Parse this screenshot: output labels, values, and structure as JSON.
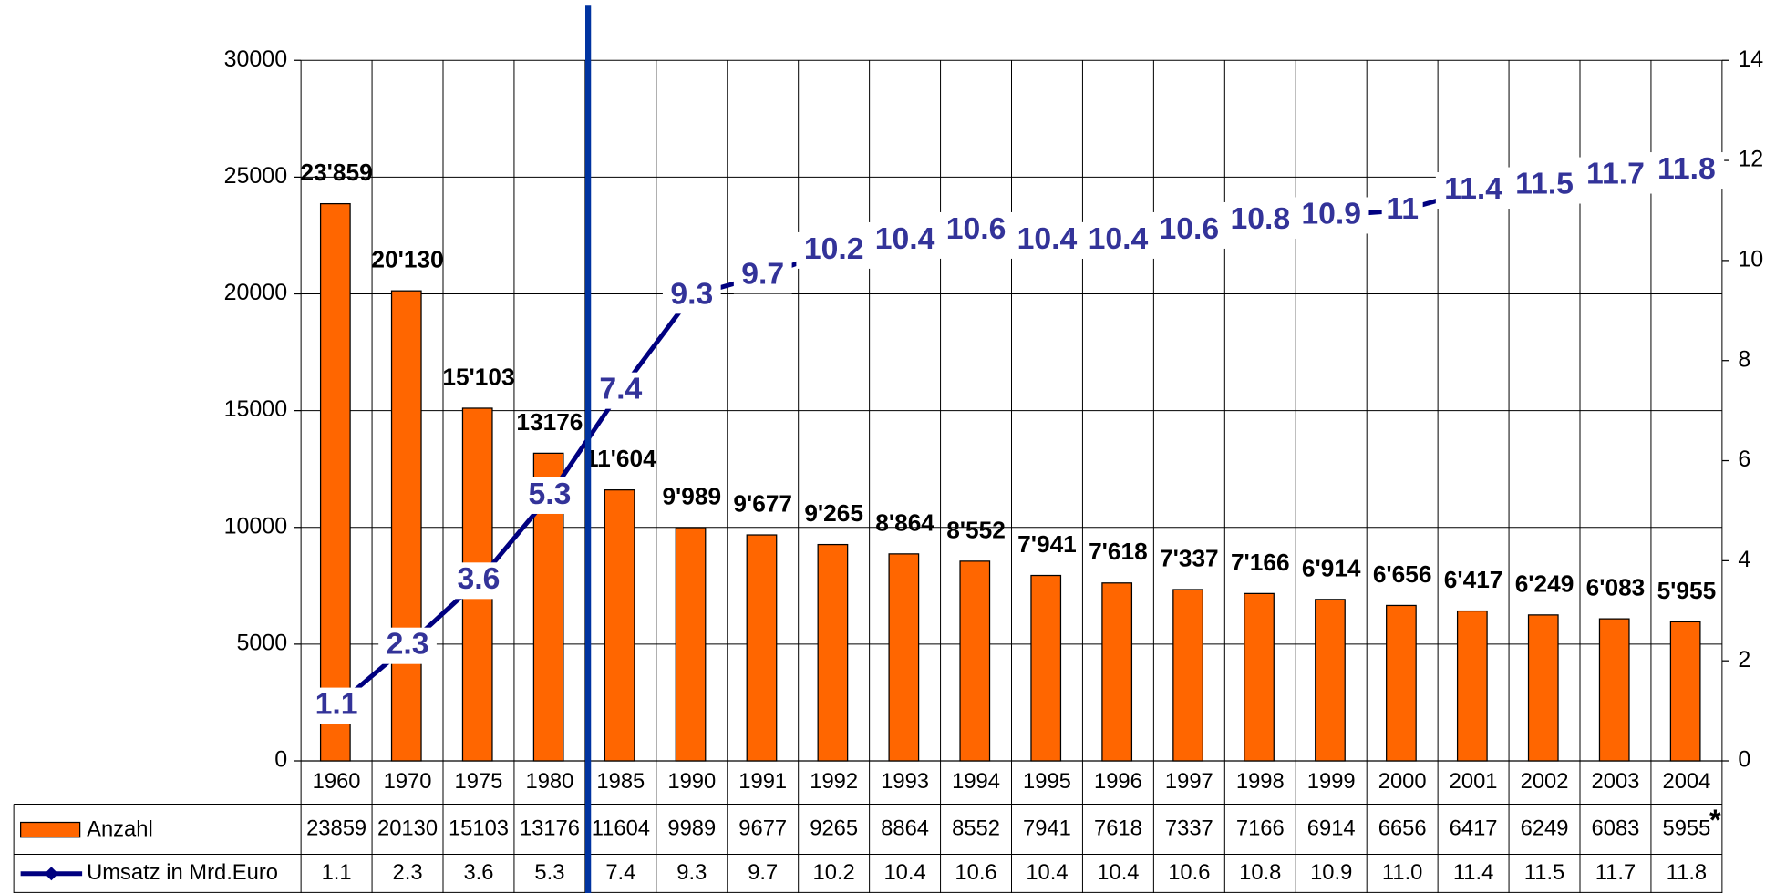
{
  "chart_data": {
    "type": "bar_line",
    "categories": [
      "1960",
      "1970",
      "1975",
      "1980",
      "1985",
      "1990",
      "1991",
      "1992",
      "1993",
      "1994",
      "1995",
      "1996",
      "1997",
      "1998",
      "1999",
      "2000",
      "2001",
      "2002",
      "2003",
      "2004"
    ],
    "series": [
      {
        "name": "Anzahl",
        "type": "bar",
        "color": "#ff6600",
        "values": [
          23859,
          20130,
          15103,
          13176,
          11604,
          9989,
          9677,
          9265,
          8864,
          8552,
          7941,
          7618,
          7337,
          7166,
          6914,
          6656,
          6417,
          6249,
          6083,
          5955
        ],
        "value_labels": [
          "23'859",
          "20'130",
          "15'103",
          "13176",
          "11'604",
          "9'989",
          "9'677",
          "9'265",
          "8'864",
          "8'552",
          "7'941",
          "7'618",
          "7'337",
          "7'166",
          "6'914",
          "6'656",
          "6'417",
          "6'249",
          "6'083",
          "5'955"
        ]
      },
      {
        "name": "Umsatz in Mrd.Euro",
        "type": "line",
        "color": "#000080",
        "axis": "y2",
        "values": [
          1.1,
          2.3,
          3.6,
          5.3,
          7.4,
          9.3,
          9.7,
          10.2,
          10.4,
          10.6,
          10.4,
          10.4,
          10.6,
          10.8,
          10.9,
          11,
          11.4,
          11.5,
          11.7,
          11.8
        ],
        "value_labels": [
          "1.1",
          "2.3",
          "3.6",
          "5.3",
          "7.4",
          "9.3",
          "9.7",
          "10.2",
          "10.4",
          "10.6",
          "10.4",
          "10.4",
          "10.6",
          "10.8",
          "10.9",
          "11.0",
          "11.4",
          "11.5",
          "11.7",
          "11.8"
        ]
      }
    ],
    "ylim": [
      0,
      30000
    ],
    "yticks": [
      0,
      5000,
      10000,
      15000,
      20000,
      25000,
      30000
    ],
    "y2lim": [
      0,
      14
    ],
    "y2ticks": [
      0,
      2,
      4,
      6,
      8,
      10,
      12,
      14
    ],
    "grid": true,
    "note": "*"
  }
}
